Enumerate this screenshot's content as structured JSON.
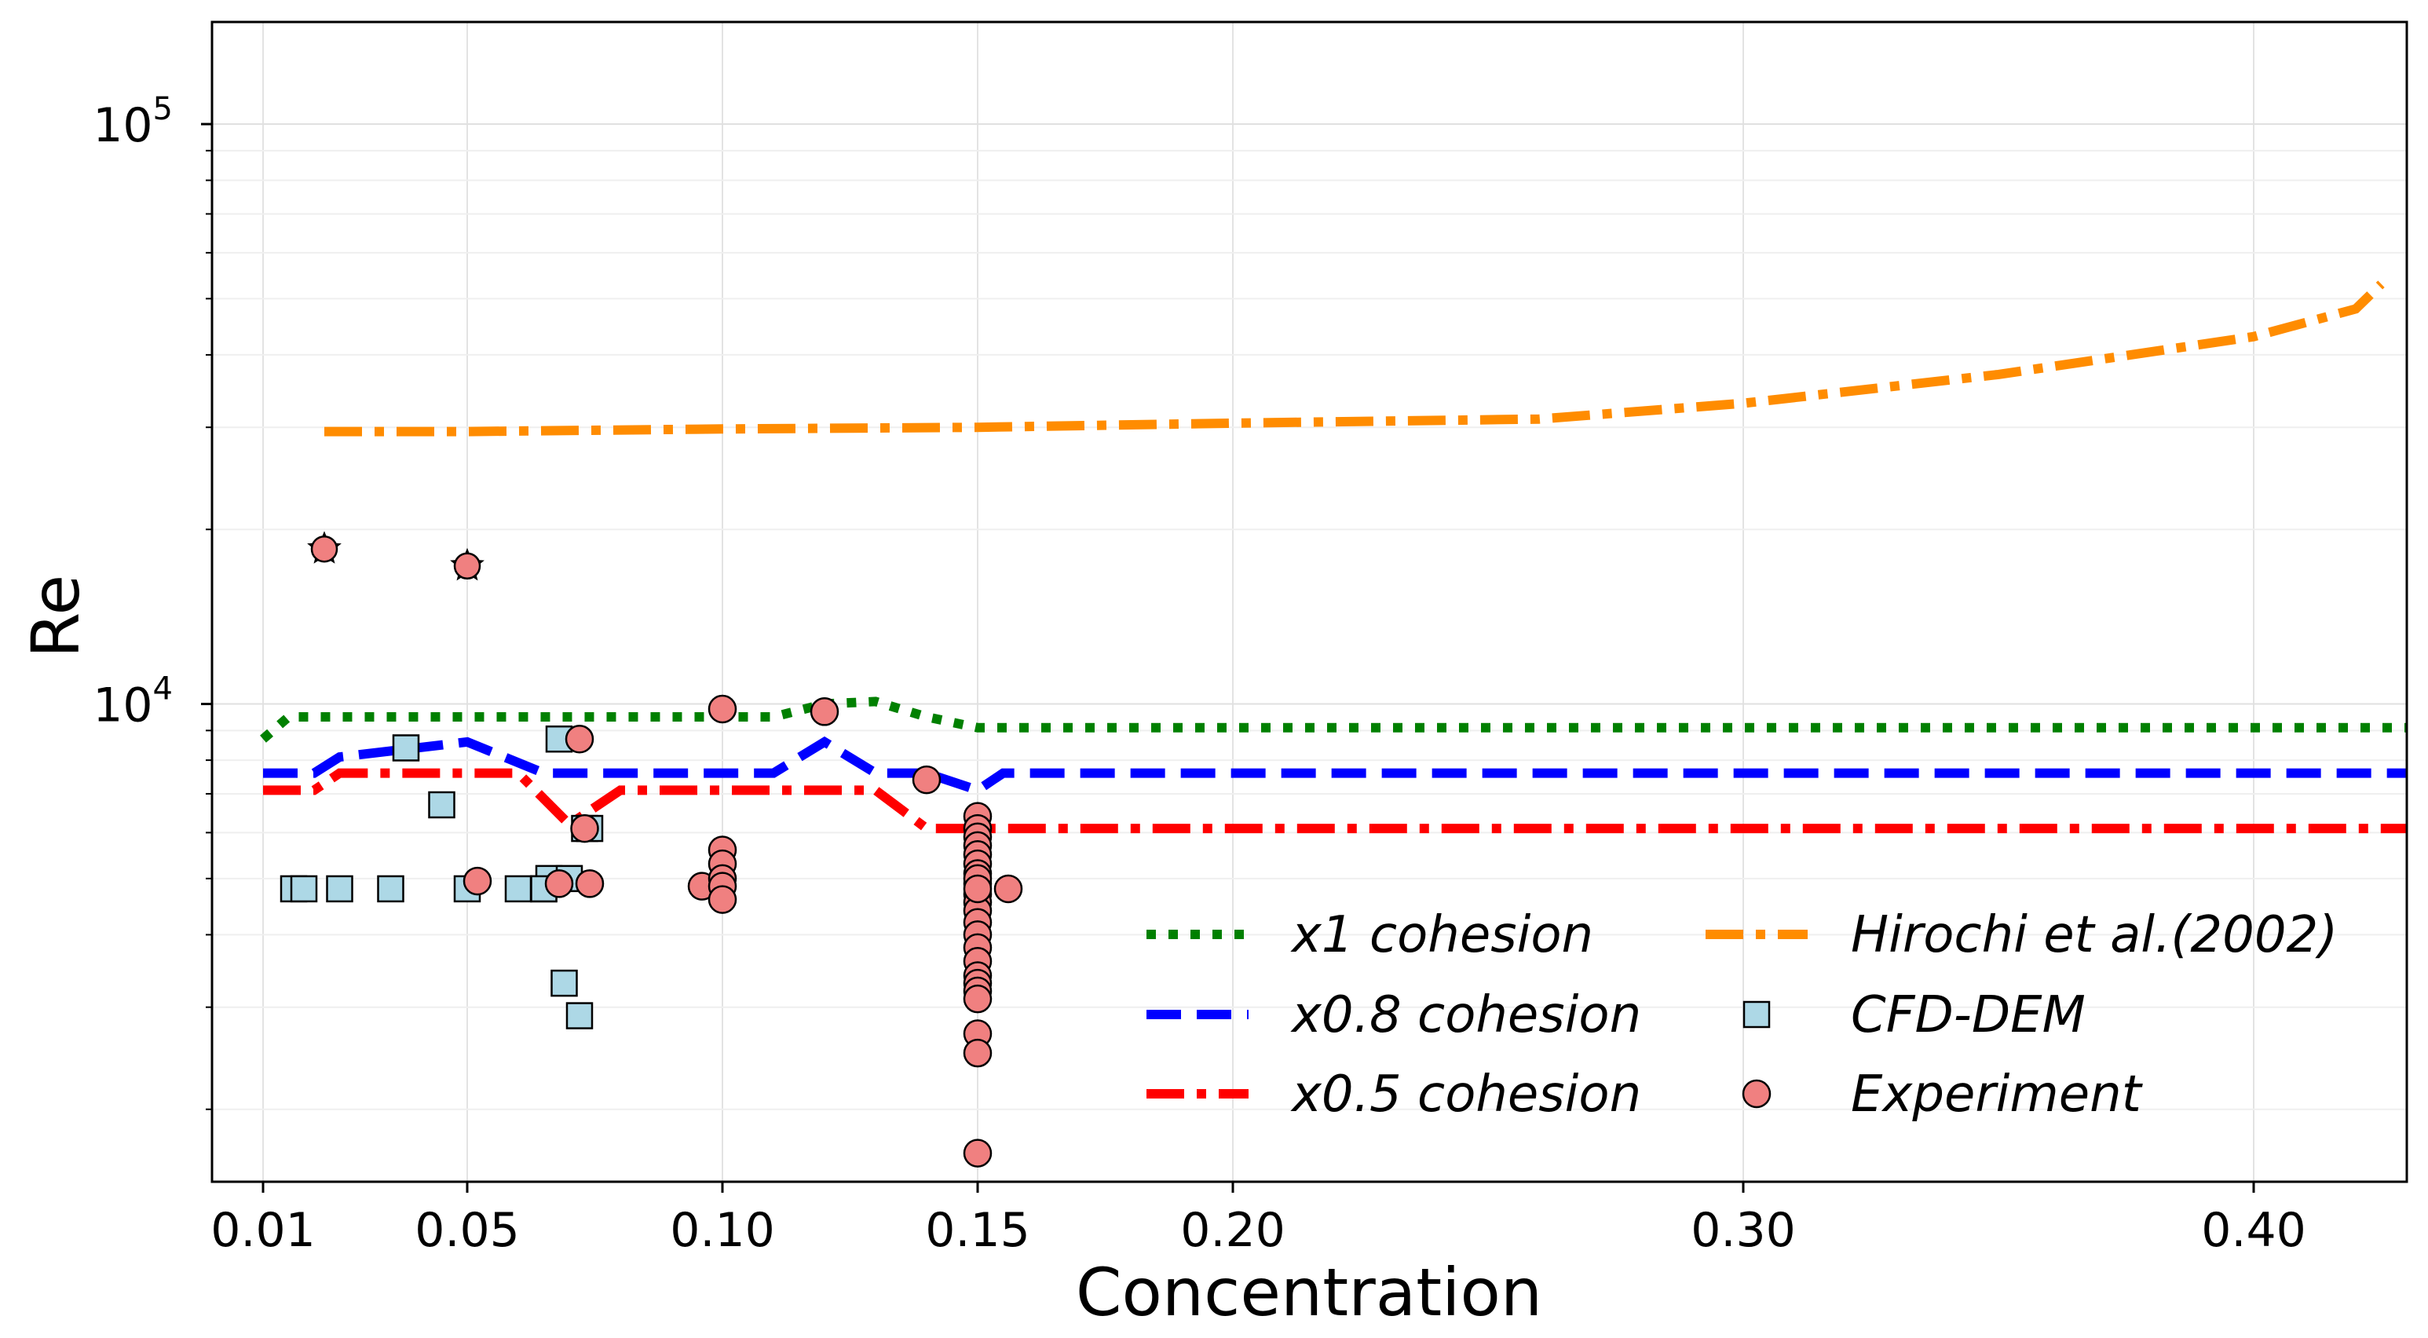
{
  "chart_data": {
    "type": "line",
    "xlabel": "Concentration",
    "ylabel": "Re",
    "xscale": "linear",
    "yscale": "log",
    "xlim": [
      0.0,
      0.43
    ],
    "ylim": [
      1500,
      150000
    ],
    "grid": true,
    "legend_position": "lower-right",
    "legend_columns": 2,
    "x_ticks": [
      {
        "value": 0.01,
        "label": "0.01"
      },
      {
        "value": 0.05,
        "label": "0.05"
      },
      {
        "value": 0.1,
        "label": "0.10"
      },
      {
        "value": 0.15,
        "label": "0.15"
      },
      {
        "value": 0.2,
        "label": "0.20"
      },
      {
        "value": 0.3,
        "label": "0.30"
      },
      {
        "value": 0.4,
        "label": "0.40"
      }
    ],
    "y_ticks": [
      {
        "value": 10000,
        "base": "10",
        "exp": "4"
      },
      {
        "value": 100000,
        "base": "10",
        "exp": "5"
      }
    ],
    "series": [
      {
        "name": "x1 cohesion",
        "kind": "line",
        "color": "#008000",
        "dash": "dotted",
        "x": [
          0.01,
          0.015,
          0.02,
          0.05,
          0.06,
          0.08,
          0.1,
          0.11,
          0.12,
          0.13,
          0.14,
          0.15,
          0.2,
          0.3,
          0.4,
          0.43
        ],
        "y": [
          8700,
          9500,
          9500,
          9500,
          9500,
          9500,
          9500,
          9500,
          10000,
          10100,
          9500,
          9100,
          9100,
          9100,
          9100,
          9100
        ]
      },
      {
        "name": "x0.8 cohesion",
        "kind": "line",
        "color": "#0000ff",
        "dash": "dashed",
        "x": [
          0.01,
          0.02,
          0.025,
          0.05,
          0.065,
          0.08,
          0.1,
          0.11,
          0.12,
          0.13,
          0.14,
          0.15,
          0.155,
          0.2,
          0.3,
          0.4,
          0.43
        ],
        "y": [
          7600,
          7600,
          8100,
          8600,
          7600,
          7600,
          7600,
          7600,
          8600,
          7600,
          7600,
          7100,
          7600,
          7600,
          7600,
          7600,
          7600
        ]
      },
      {
        "name": "x0.5 cohesion",
        "kind": "line",
        "color": "#ff0000",
        "dash": "dashdot",
        "x": [
          0.01,
          0.02,
          0.025,
          0.05,
          0.06,
          0.07,
          0.08,
          0.1,
          0.13,
          0.14,
          0.15,
          0.2,
          0.3,
          0.4,
          0.43
        ],
        "y": [
          7100,
          7100,
          7600,
          7600,
          7600,
          6200,
          7100,
          7100,
          7100,
          6100,
          6100,
          6100,
          6100,
          6100,
          6100
        ]
      },
      {
        "name": "Hirochi et al.(2002)",
        "kind": "line",
        "color": "#ff8c00",
        "dash": "dashdot",
        "x": [
          0.022,
          0.05,
          0.1,
          0.15,
          0.2,
          0.26,
          0.3,
          0.35,
          0.4,
          0.42,
          0.425
        ],
        "y": [
          29500,
          29500,
          29800,
          30000,
          30500,
          31000,
          33000,
          37000,
          43000,
          48000,
          53000
        ]
      },
      {
        "name": "CFD-DEM",
        "kind": "scatter",
        "marker": "square",
        "color": "#add8e6",
        "x": [
          0.016,
          0.018,
          0.025,
          0.035,
          0.038,
          0.045,
          0.05,
          0.06,
          0.065,
          0.066,
          0.068,
          0.069,
          0.07,
          0.072,
          0.073,
          0.065,
          0.074
        ],
        "y": [
          4800,
          4800,
          4800,
          4800,
          8400,
          6700,
          4800,
          4800,
          4800,
          5000,
          8700,
          3300,
          5000,
          2900,
          6100,
          4800,
          6100
        ]
      },
      {
        "name": "Experiment",
        "kind": "scatter",
        "marker": "circle",
        "color": "#f08080",
        "x": [
          0.052,
          0.068,
          0.072,
          0.073,
          0.074,
          0.096,
          0.1,
          0.1,
          0.1,
          0.1,
          0.1,
          0.1,
          0.12,
          0.14,
          0.15,
          0.15,
          0.15,
          0.15,
          0.15,
          0.15,
          0.15,
          0.15,
          0.15,
          0.15,
          0.15,
          0.15,
          0.15,
          0.15,
          0.15,
          0.15,
          0.15,
          0.15,
          0.15,
          0.15,
          0.15,
          0.15,
          0.15,
          0.15,
          0.156
        ],
        "y": [
          4950,
          4900,
          8700,
          6100,
          4900,
          4850,
          9800,
          5600,
          5300,
          5000,
          4850,
          4600,
          9700,
          7400,
          6400,
          6100,
          5900,
          5700,
          5500,
          5300,
          5100,
          4900,
          4700,
          4550,
          4400,
          4200,
          4000,
          3800,
          3600,
          3400,
          3300,
          3200,
          3100,
          2700,
          2500,
          1680,
          5000,
          4800,
          4800
        ]
      },
      {
        "name": "Experiment (starred)",
        "kind": "scatter",
        "marker": "circle-star",
        "color": "#f08080",
        "show_in_legend": false,
        "x": [
          0.022,
          0.05
        ],
        "y": [
          18500,
          17300
        ]
      }
    ]
  }
}
